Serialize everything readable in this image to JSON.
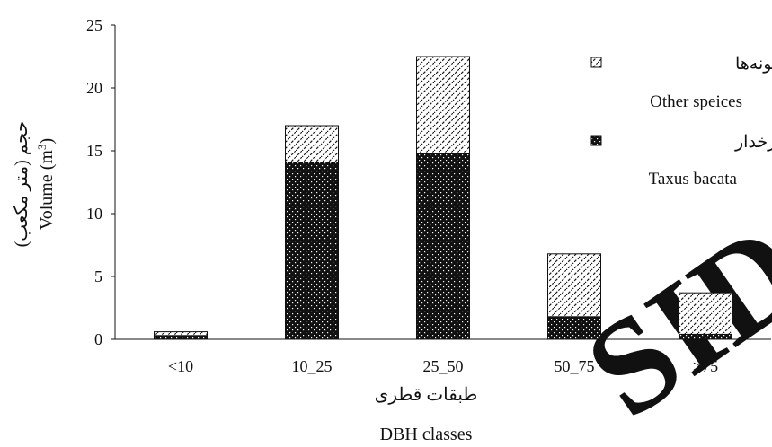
{
  "chart_data": {
    "type": "bar",
    "stacked": true,
    "categories": [
      "<10",
      "10_25",
      "25_50",
      "50_75",
      ">75"
    ],
    "series": [
      {
        "name": "سرخدار",
        "name_en": "Taxus bacata",
        "values": [
          0.3,
          14.1,
          14.8,
          1.8,
          0.4
        ],
        "pattern": "dotted-black"
      },
      {
        "name": "سایر گونه‌ها",
        "name_en": "Other speices",
        "values": [
          0.3,
          2.9,
          7.7,
          5.0,
          3.3
        ],
        "pattern": "hatched-white"
      }
    ],
    "y_ticks": [
      "0",
      "5",
      "10",
      "15",
      "20",
      "25"
    ],
    "ylim": [
      0,
      25
    ],
    "xlabel_fa": "طبقات قطری",
    "xlabel_en": "DBH classes",
    "ylabel_fa": "حجم (متر مکعب)",
    "ylabel_en": "Volume (m",
    "ylabel_en_sup": "3",
    "ylabel_en_close": ")",
    "legend_position": "top-right",
    "grid": false,
    "colors": {
      "dark": "#111111",
      "light": "#ffffff",
      "watermark": "#eaeaea"
    },
    "watermark": "SID"
  }
}
